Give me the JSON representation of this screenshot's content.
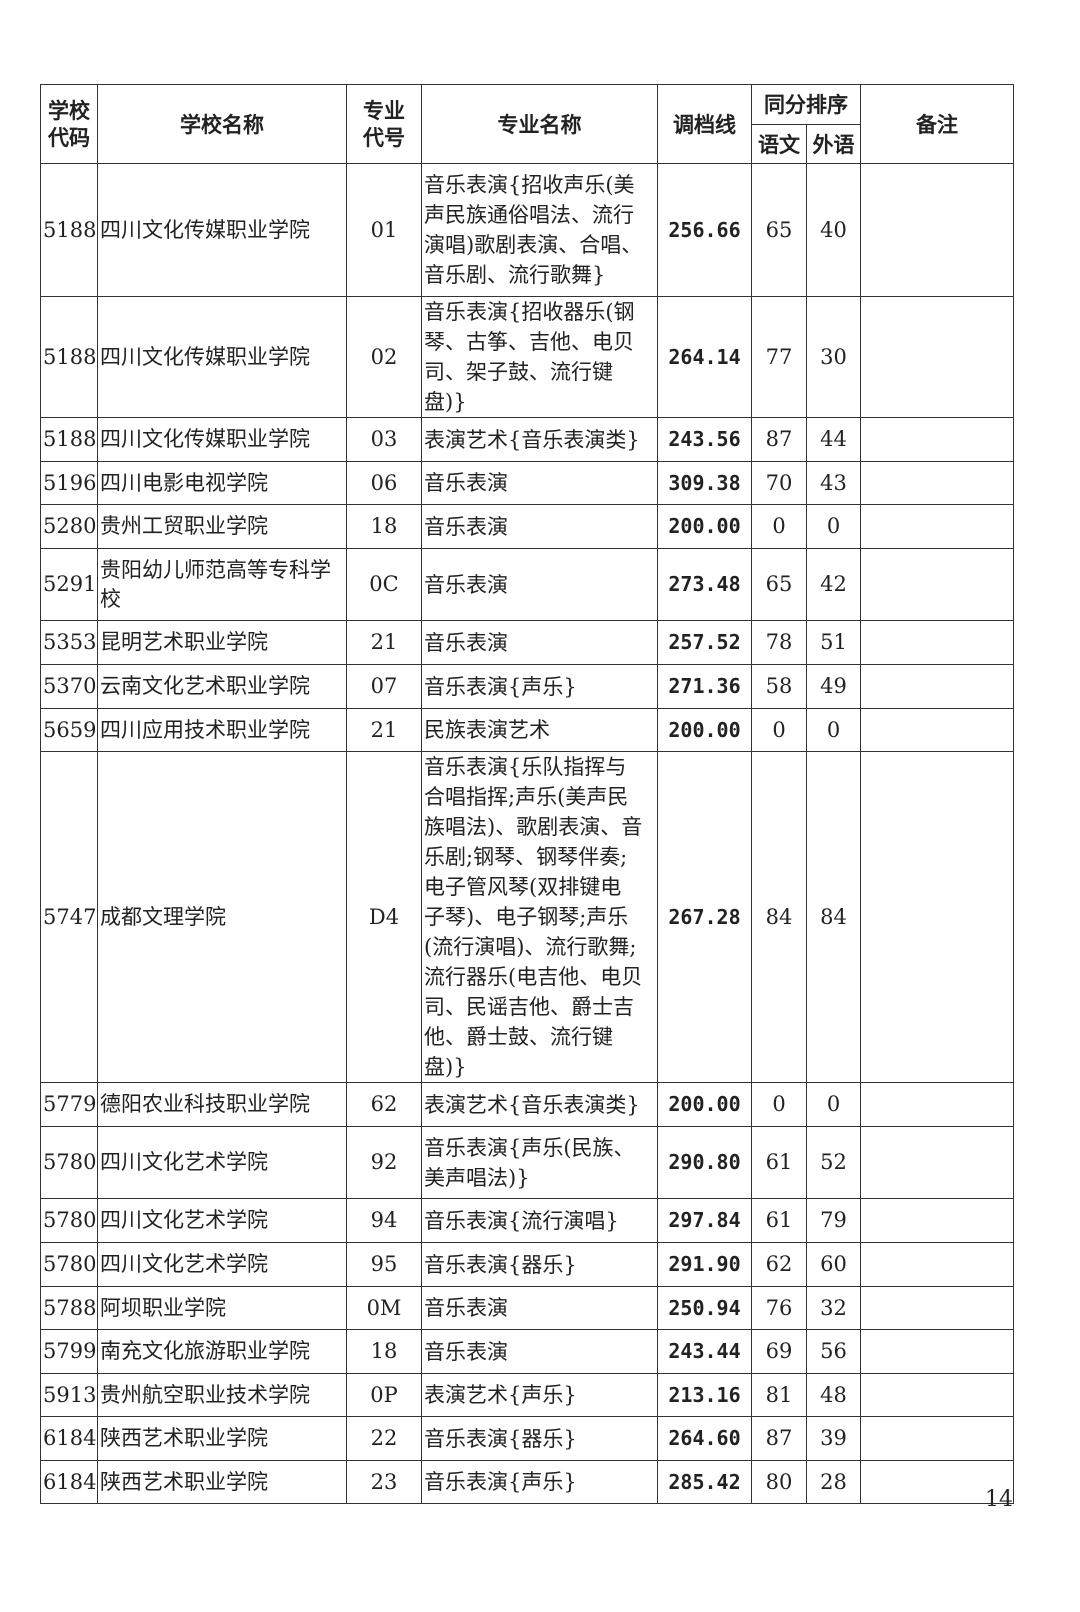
{
  "headers": {
    "school_code": "学校\n代码",
    "school_name": "学校名称",
    "major_code": "专业\n代号",
    "major_name": "专业名称",
    "cutoff": "调档线",
    "tie_order": "同分排序",
    "chinese": "语文",
    "foreign": "外语",
    "remark": "备注"
  },
  "rows": [
    {
      "code": "5188",
      "school": "四川文化传媒职业学院",
      "mcode": "01",
      "major": "音乐表演{招收声乐(美\n声民族通俗唱法、流行\n演唱)歌剧表演、合唱、\n音乐剧、流行歌舞}",
      "score": "256.66",
      "cn": "65",
      "fl": "40",
      "remark": ""
    },
    {
      "code": "5188",
      "school": "四川文化传媒职业学院",
      "mcode": "02",
      "major": "音乐表演{招收器乐(钢\n琴、古筝、吉他、电贝\n司、架子鼓、流行键盘)}",
      "score": "264.14",
      "cn": "77",
      "fl": "30",
      "remark": ""
    },
    {
      "code": "5188",
      "school": "四川文化传媒职业学院",
      "mcode": "03",
      "major": "表演艺术{音乐表演类}",
      "score": "243.56",
      "cn": "87",
      "fl": "44",
      "remark": ""
    },
    {
      "code": "5196",
      "school": "四川电影电视学院",
      "mcode": "06",
      "major": "音乐表演",
      "score": "309.38",
      "cn": "70",
      "fl": "43",
      "remark": ""
    },
    {
      "code": "5280",
      "school": "贵州工贸职业学院",
      "mcode": "18",
      "major": "音乐表演",
      "score": "200.00",
      "cn": "0",
      "fl": "0",
      "remark": ""
    },
    {
      "code": "5291",
      "school": "贵阳幼儿师范高等专科学校",
      "mcode": "0C",
      "major": "音乐表演",
      "score": "273.48",
      "cn": "65",
      "fl": "42",
      "remark": ""
    },
    {
      "code": "5353",
      "school": "昆明艺术职业学院",
      "mcode": "21",
      "major": "音乐表演",
      "score": "257.52",
      "cn": "78",
      "fl": "51",
      "remark": ""
    },
    {
      "code": "5370",
      "school": "云南文化艺术职业学院",
      "mcode": "07",
      "major": "音乐表演{声乐}",
      "score": "271.36",
      "cn": "58",
      "fl": "49",
      "remark": ""
    },
    {
      "code": "5659",
      "school": "四川应用技术职业学院",
      "mcode": "21",
      "major": "民族表演艺术",
      "score": "200.00",
      "cn": "0",
      "fl": "0",
      "remark": ""
    },
    {
      "code": "5747",
      "school": "成都文理学院",
      "mcode": "D4",
      "major": "音乐表演{乐队指挥与\n合唱指挥;声乐(美声民\n族唱法)、歌剧表演、音\n乐剧;钢琴、钢琴伴奏;\n电子管风琴(双排键电\n子琴)、电子钢琴;声乐\n(流行演唱)、流行歌舞;\n流行器乐(电吉他、电贝\n司、民谣吉他、爵士吉\n他、爵士鼓、流行键盘)}",
      "score": "267.28",
      "cn": "84",
      "fl": "84",
      "remark": ""
    },
    {
      "code": "5779",
      "school": "德阳农业科技职业学院",
      "mcode": "62",
      "major": "表演艺术{音乐表演类}",
      "score": "200.00",
      "cn": "0",
      "fl": "0",
      "remark": ""
    },
    {
      "code": "5780",
      "school": "四川文化艺术学院",
      "mcode": "92",
      "major": "音乐表演{声乐(民族、\n美声唱法)}",
      "score": "290.80",
      "cn": "61",
      "fl": "52",
      "remark": ""
    },
    {
      "code": "5780",
      "school": "四川文化艺术学院",
      "mcode": "94",
      "major": "音乐表演{流行演唱}",
      "score": "297.84",
      "cn": "61",
      "fl": "79",
      "remark": ""
    },
    {
      "code": "5780",
      "school": "四川文化艺术学院",
      "mcode": "95",
      "major": "音乐表演{器乐}",
      "score": "291.90",
      "cn": "62",
      "fl": "60",
      "remark": ""
    },
    {
      "code": "5788",
      "school": "阿坝职业学院",
      "mcode": "0M",
      "major": "音乐表演",
      "score": "250.94",
      "cn": "76",
      "fl": "32",
      "remark": ""
    },
    {
      "code": "5799",
      "school": "南充文化旅游职业学院",
      "mcode": "18",
      "major": "音乐表演",
      "score": "243.44",
      "cn": "69",
      "fl": "56",
      "remark": ""
    },
    {
      "code": "5913",
      "school": "贵州航空职业技术学院",
      "mcode": "0P",
      "major": "表演艺术{声乐}",
      "score": "213.16",
      "cn": "81",
      "fl": "48",
      "remark": ""
    },
    {
      "code": "6184",
      "school": "陕西艺术职业学院",
      "mcode": "22",
      "major": "音乐表演{器乐}",
      "score": "264.60",
      "cn": "87",
      "fl": "39",
      "remark": ""
    },
    {
      "code": "6184",
      "school": "陕西艺术职业学院",
      "mcode": "23",
      "major": "音乐表演{声乐}",
      "score": "285.42",
      "cn": "80",
      "fl": "28",
      "remark": ""
    }
  ],
  "page_number": "14"
}
